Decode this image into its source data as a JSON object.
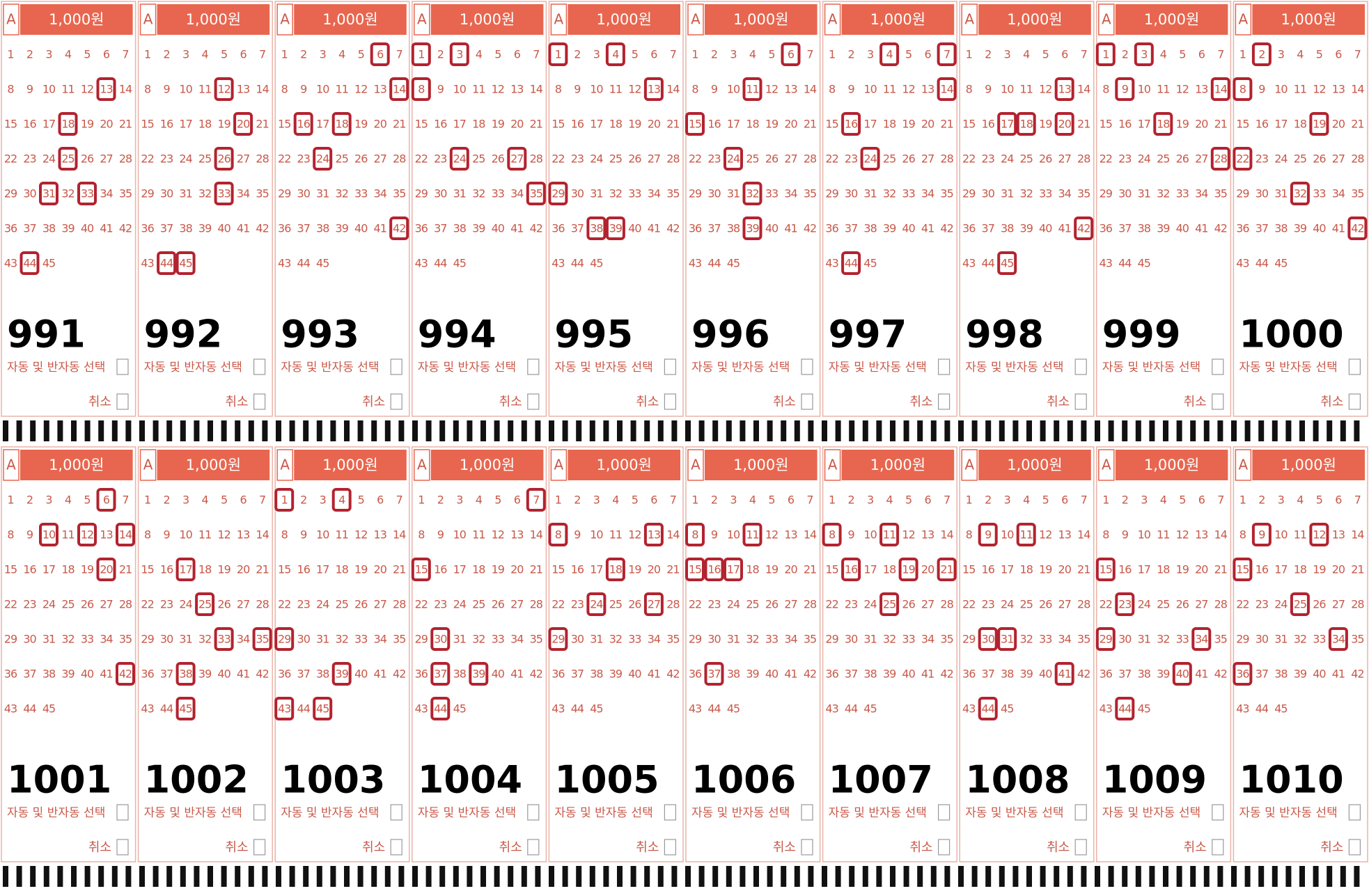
{
  "slip_labels": {
    "set": "A",
    "price": "1,000원",
    "auto": "자동 및 반자동 선택",
    "cancel": "취소"
  },
  "numbers": [
    1,
    2,
    3,
    4,
    5,
    6,
    7,
    8,
    9,
    10,
    11,
    12,
    13,
    14,
    15,
    16,
    17,
    18,
    19,
    20,
    21,
    22,
    23,
    24,
    25,
    26,
    27,
    28,
    29,
    30,
    31,
    32,
    33,
    34,
    35,
    36,
    37,
    38,
    39,
    40,
    41,
    42,
    43,
    44,
    45
  ],
  "slips": [
    {
      "round": "991",
      "picks": [
        13,
        18,
        25,
        31,
        33,
        44
      ]
    },
    {
      "round": "992",
      "picks": [
        12,
        20,
        26,
        33,
        44,
        45
      ]
    },
    {
      "round": "993",
      "picks": [
        6,
        14,
        16,
        18,
        24,
        42
      ]
    },
    {
      "round": "994",
      "picks": [
        1,
        3,
        8,
        24,
        27,
        35
      ]
    },
    {
      "round": "995",
      "picks": [
        1,
        4,
        13,
        29,
        38,
        39
      ]
    },
    {
      "round": "996",
      "picks": [
        6,
        11,
        15,
        24,
        32,
        39
      ]
    },
    {
      "round": "997",
      "picks": [
        4,
        7,
        14,
        16,
        24,
        44
      ]
    },
    {
      "round": "998",
      "picks": [
        13,
        17,
        18,
        20,
        42,
        45
      ]
    },
    {
      "round": "999",
      "picks": [
        1,
        3,
        9,
        14,
        18,
        28
      ]
    },
    {
      "round": "1000",
      "picks": [
        2,
        8,
        19,
        22,
        32,
        42
      ]
    },
    {
      "round": "1001",
      "picks": [
        6,
        10,
        12,
        14,
        20,
        42
      ]
    },
    {
      "round": "1002",
      "picks": [
        17,
        25,
        33,
        35,
        38,
        45
      ]
    },
    {
      "round": "1003",
      "picks": [
        1,
        4,
        29,
        39,
        43,
        45
      ]
    },
    {
      "round": "1004",
      "picks": [
        7,
        15,
        30,
        37,
        39,
        44
      ]
    },
    {
      "round": "1005",
      "picks": [
        8,
        13,
        18,
        24,
        27,
        29
      ]
    },
    {
      "round": "1006",
      "picks": [
        8,
        11,
        15,
        16,
        17,
        37
      ]
    },
    {
      "round": "1007",
      "picks": [
        8,
        11,
        16,
        19,
        21,
        25
      ]
    },
    {
      "round": "1008",
      "picks": [
        9,
        11,
        30,
        31,
        41,
        44
      ]
    },
    {
      "round": "1009",
      "picks": [
        15,
        23,
        29,
        34,
        40,
        44
      ]
    },
    {
      "round": "1010",
      "picks": [
        9,
        12,
        15,
        25,
        34,
        36
      ]
    }
  ]
}
